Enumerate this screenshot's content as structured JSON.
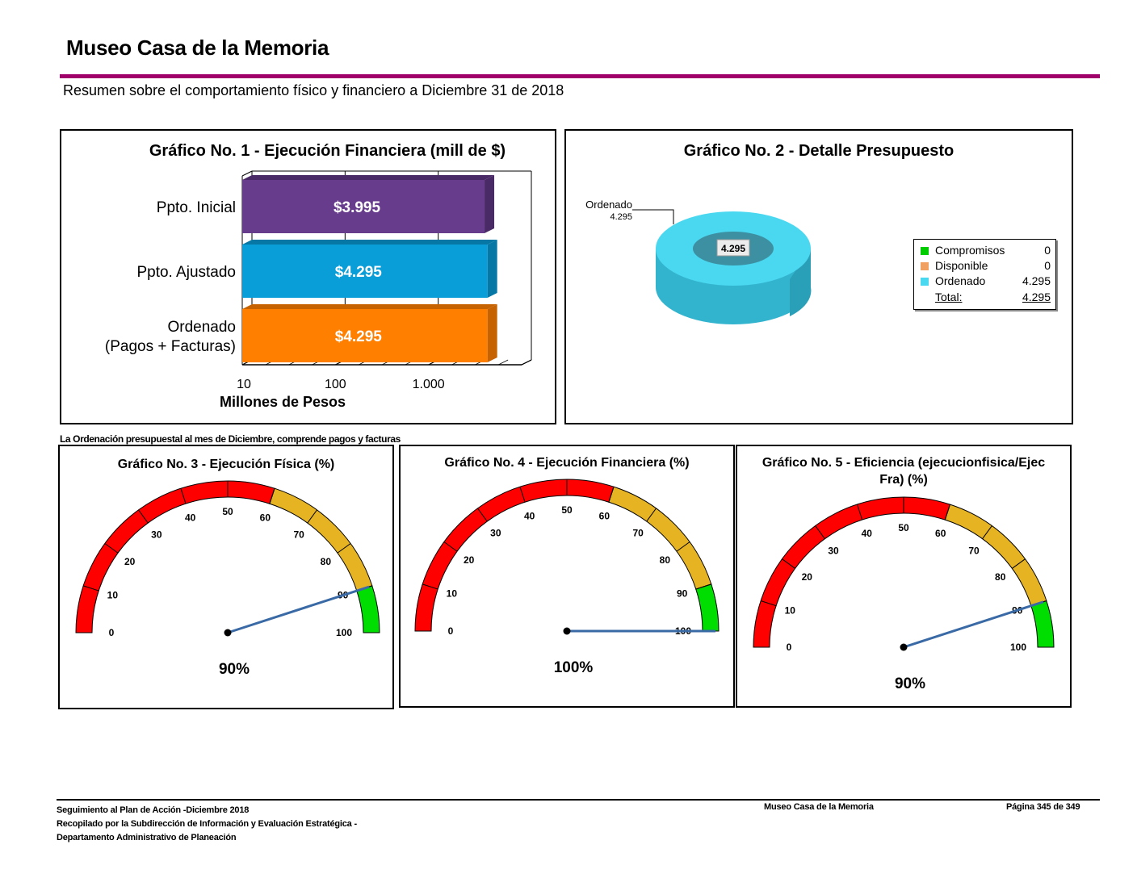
{
  "header": {
    "title": "Museo Casa de la Memoria",
    "subtitle": "Resumen sobre el comportamiento físico y financiero a Diciembre 31 de 2018"
  },
  "colors": {
    "accent_rule": "#a0006a",
    "red": "#ff0000",
    "amber": "#e6b422",
    "green": "#00dd00"
  },
  "note": "La Ordenación presupuestal al mes de Diciembre, comprende pagos y facturas",
  "footer": {
    "left_lines": [
      "Seguimiento al Plan de Acción -Diciembre 2018",
      "Recopilado por la Subdirección de Información y Evaluación Estratégica -",
      "Departamento Administrativo de Planeación"
    ],
    "center": "Museo Casa de la Memoria",
    "right": "Página 345 de 349"
  },
  "chart_data": [
    {
      "type": "bar",
      "orientation": "horizontal",
      "title": "Gráfico No. 1 - Ejecución Financiera (mill de $)",
      "xlabel": "Millones de Pesos",
      "xscale": "log",
      "xticks": [
        "10",
        "100",
        "1.000"
      ],
      "xlim": [
        10,
        10000
      ],
      "categories": [
        "Ppto. Inicial",
        "Ppto. Ajustado",
        "Ordenado (Pagos + Facturas)"
      ],
      "category_lines": [
        [
          "Ppto. Inicial"
        ],
        [
          "Ppto. Ajustado"
        ],
        [
          "Ordenado",
          "(Pagos + Facturas)"
        ]
      ],
      "values": [
        3995,
        4295,
        4295
      ],
      "value_labels": [
        "$3.995",
        "$4.295",
        "$4.295"
      ],
      "bar_colors": [
        "#683c8c",
        "#0a9ed8",
        "#ff8000"
      ],
      "bar_side_colors": [
        "#4a2a66",
        "#0778a6",
        "#c66200"
      ]
    },
    {
      "type": "pie",
      "style": "3d-donut",
      "title": "Gráfico No. 2 - Detalle Presupuesto",
      "slices": [
        {
          "label": "Compromisos",
          "value": 0,
          "color": "#00cc00"
        },
        {
          "label": "Disponible",
          "value": 0,
          "color": "#f0a060"
        },
        {
          "label": "Ordenado",
          "value": 4295,
          "color": "#4ad8f0"
        }
      ],
      "slice_value_labels": [
        "0",
        "0",
        "4.295"
      ],
      "callout": {
        "label": "Ordenado",
        "value": "4.295"
      },
      "center_label": "4.295",
      "total_label": "Total:",
      "total_value": "4.295",
      "legend_position": "right"
    },
    {
      "type": "gauge",
      "title": "Gráfico No. 3 -  Ejecución Física (%)",
      "title_lines": [
        "Gráfico No. 3 -  Ejecución Física (%)"
      ],
      "value": 90,
      "value_label": "90%",
      "range": [
        0,
        100
      ],
      "ticks": [
        "0",
        "10",
        "20",
        "30",
        "40",
        "50",
        "60",
        "70",
        "80",
        "90",
        "100"
      ],
      "bands": [
        {
          "from": 0,
          "to": 60,
          "color": "#ff0000"
        },
        {
          "from": 60,
          "to": 90,
          "color": "#e6b422"
        },
        {
          "from": 90,
          "to": 100,
          "color": "#00dd00"
        }
      ]
    },
    {
      "type": "gauge",
      "title": "Gráfico No. 4 -  Ejecución Financiera (%)",
      "title_lines": [
        "Gráfico No. 4 -  Ejecución Financiera (%)"
      ],
      "value": 100,
      "value_label": "100%",
      "range": [
        0,
        100
      ],
      "ticks": [
        "0",
        "10",
        "20",
        "30",
        "40",
        "50",
        "60",
        "70",
        "80",
        "90",
        "100"
      ],
      "bands": [
        {
          "from": 0,
          "to": 60,
          "color": "#ff0000"
        },
        {
          "from": 60,
          "to": 90,
          "color": "#e6b422"
        },
        {
          "from": 90,
          "to": 100,
          "color": "#00dd00"
        }
      ]
    },
    {
      "type": "gauge",
      "title": "Gráfico No. 5 - Eficiencia (ejecucionfisica/Ejec Fra) (%)",
      "title_lines": [
        "Gráfico No. 5 - Eficiencia (ejecucionfisica/Ejec",
        "Fra) (%)"
      ],
      "value": 90,
      "value_label": "90%",
      "range": [
        0,
        100
      ],
      "ticks": [
        "0",
        "10",
        "20",
        "30",
        "40",
        "50",
        "60",
        "70",
        "80",
        "90",
        "100"
      ],
      "bands": [
        {
          "from": 0,
          "to": 60,
          "color": "#ff0000"
        },
        {
          "from": 60,
          "to": 90,
          "color": "#e6b422"
        },
        {
          "from": 90,
          "to": 100,
          "color": "#00dd00"
        }
      ]
    }
  ]
}
